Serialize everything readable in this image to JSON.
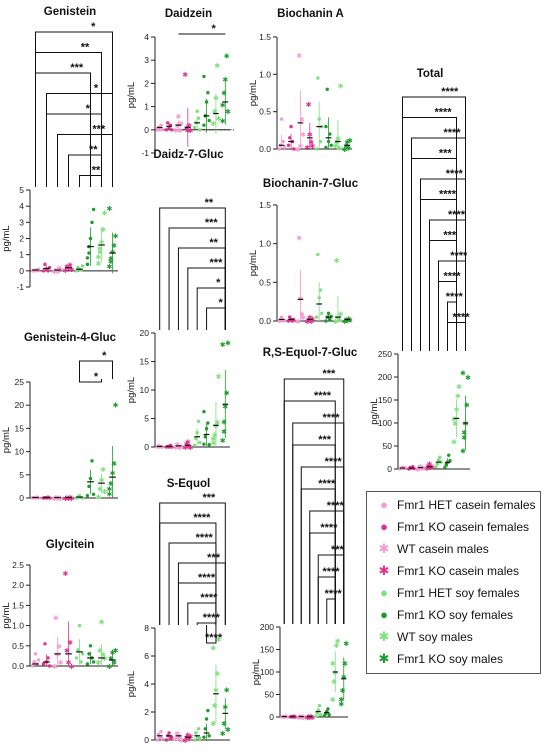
{
  "chart_data": [
    {
      "id": "genistein",
      "type": "scatter",
      "title": "Genistein",
      "ylabel": "pg/mL",
      "ylim": [
        -1,
        5
      ],
      "yticks": [
        -1,
        0,
        1,
        2,
        3,
        4,
        5
      ],
      "zero_line": false,
      "means": [
        0.05,
        0.15,
        0.05,
        0.2,
        0.1,
        1.5,
        1.6,
        1.1
      ],
      "points": [
        [
          0,
          0,
          0.05,
          0,
          0.1
        ],
        [
          0,
          0.4,
          0.1,
          0,
          0.2
        ],
        [
          0,
          0.05,
          0,
          0.2,
          0.1
        ],
        [
          0.05,
          0.3,
          0.2,
          0.4,
          0.1
        ],
        [
          0,
          0.2,
          0.1,
          0.05,
          0.3
        ],
        [
          0.4,
          1.1,
          2,
          3,
          3.8,
          0.8,
          1.5
        ],
        [
          0.5,
          1.2,
          1.8,
          2.6,
          3.6,
          0.9,
          1.4
        ],
        [
          0.3,
          0.8,
          1.2,
          1.6,
          2.2,
          3.9,
          0.6
        ]
      ],
      "brackets": [
        {
          "from": 0,
          "to": 7,
          "label": "*"
        },
        {
          "from": 0,
          "to": 6,
          "label": "**"
        },
        {
          "from": 0,
          "to": 5,
          "label": "***"
        },
        {
          "from": 1,
          "to": 7,
          "label": "*"
        },
        {
          "from": 1,
          "to": 6,
          "label": "*"
        },
        {
          "from": 2,
          "to": 7,
          "label": "***"
        },
        {
          "from": 3,
          "to": 6,
          "label": "**"
        },
        {
          "from": 4,
          "to": 6,
          "label": "**"
        }
      ]
    },
    {
      "id": "daidzein",
      "type": "scatter",
      "title": "Daidzein",
      "ylabel": "pg/mL",
      "ylim": [
        -1,
        4
      ],
      "yticks": [
        -1,
        0,
        1,
        2,
        3,
        4
      ],
      "zero_line": true,
      "means": [
        0.1,
        0.15,
        0.2,
        0.1,
        0.3,
        0.6,
        0.7,
        1.2
      ],
      "points": [
        [
          0,
          0.1,
          0,
          0.2,
          0
        ],
        [
          0,
          0.3,
          0.1,
          0.2,
          0
        ],
        [
          0,
          0.2,
          0.6,
          0,
          0.3
        ],
        [
          2.4,
          0.1,
          0,
          0.2,
          0
        ],
        [
          0.1,
          0.3,
          0.8,
          0.5,
          0
        ],
        [
          0.2,
          0.6,
          1.2,
          1.6,
          0.4,
          2.3
        ],
        [
          0.3,
          0.8,
          1.4,
          2.8,
          0.5
        ],
        [
          0.4,
          1.6,
          2.2,
          3.2,
          0.8,
          1.1
        ]
      ],
      "brackets": [
        {
          "from": 2,
          "to": 7,
          "label": "*"
        }
      ]
    },
    {
      "id": "biochanin_a",
      "type": "scatter",
      "title": "Biochanin A",
      "ylabel": "pg/mL",
      "ylim": [
        0,
        1.5
      ],
      "yticks": [
        0.0,
        0.5,
        1.0,
        1.5
      ],
      "zero_line": false,
      "means": [
        0.05,
        0.1,
        0.35,
        0.15,
        0.3,
        0.15,
        0.1,
        0.05
      ],
      "points": [
        [
          0,
          0.05,
          0.4,
          0.1,
          0.02
        ],
        [
          0.05,
          0.15,
          0.3,
          0.1,
          0
        ],
        [
          0,
          1.26,
          0.05,
          0.4,
          0.2
        ],
        [
          0.03,
          0.6,
          0.2,
          0.1,
          0.05
        ],
        [
          0,
          0.95,
          0.4,
          0.1,
          0.3
        ],
        [
          0.02,
          0.8,
          0.1,
          0.2,
          0.05,
          0.3
        ],
        [
          0.05,
          0.1,
          0.15,
          0.02,
          0.85
        ],
        [
          0,
          0.05,
          0.1,
          0.02,
          0.12
        ]
      ],
      "brackets": []
    },
    {
      "id": "daidz_7_gluc",
      "type": "scatter",
      "title": "Daidz-7-Gluc",
      "ylabel": "pg/mL",
      "ylim": [
        0,
        20
      ],
      "yticks": [
        0,
        5,
        10,
        15,
        20
      ],
      "zero_line": false,
      "means": [
        0.1,
        0.1,
        0.2,
        0.3,
        1.8,
        2.2,
        3.8,
        7.5
      ],
      "points": [
        [
          0,
          0.2,
          0,
          0.1,
          0
        ],
        [
          0,
          0.1,
          0,
          0.3,
          0
        ],
        [
          0,
          0.5,
          0.1,
          0,
          0.2
        ],
        [
          0,
          0.6,
          1,
          0.2,
          0
        ],
        [
          0.3,
          1.5,
          2.5,
          4.5,
          0.8
        ],
        [
          0.5,
          1.8,
          3.2,
          4.2,
          0.4,
          6.2
        ],
        [
          0.8,
          2.2,
          3.8,
          4.4,
          12.5,
          1.5
        ],
        [
          1.2,
          4.5,
          7.2,
          9.6,
          18.3,
          18.1,
          2.8
        ]
      ],
      "brackets": [
        {
          "from": 0,
          "to": 7,
          "label": "**"
        },
        {
          "from": 1,
          "to": 7,
          "label": "***"
        },
        {
          "from": 2,
          "to": 7,
          "label": "**"
        },
        {
          "from": 3,
          "to": 7,
          "label": "***"
        },
        {
          "from": 4,
          "to": 7,
          "label": "*"
        },
        {
          "from": 5,
          "to": 7,
          "label": "*"
        }
      ]
    },
    {
      "id": "biochanin_7_gluc",
      "type": "scatter",
      "title": "Biochanin-7-Gluc",
      "ylabel": "pg/mL",
      "ylim": [
        0,
        1.5
      ],
      "yticks": [
        0.0,
        0.5,
        1.0,
        1.5
      ],
      "zero_line": false,
      "means": [
        0.02,
        0.02,
        0.28,
        0.02,
        0.22,
        0.05,
        0.05,
        0.02
      ],
      "points": [
        [
          0,
          0.02,
          0.05,
          0,
          0.01
        ],
        [
          0,
          0.05,
          0.02,
          0,
          0.02
        ],
        [
          0,
          1.08,
          0.3,
          0.1,
          0.05
        ],
        [
          0,
          0.02,
          0.05,
          0,
          0.03
        ],
        [
          0.05,
          0.86,
          0.3,
          0.4,
          0.1
        ],
        [
          0,
          0.05,
          0.1,
          0.02,
          0.06
        ],
        [
          0,
          0.79,
          0.05,
          0.02,
          0.1
        ],
        [
          0,
          0.02,
          0.01,
          0.03,
          0.02
        ]
      ],
      "brackets": []
    },
    {
      "id": "total",
      "type": "scatter",
      "title": "Total",
      "ylabel": "pg/mL",
      "ylim": [
        0,
        250
      ],
      "yticks": [
        0,
        50,
        100,
        150,
        200,
        250
      ],
      "zero_line": false,
      "means": [
        2,
        2,
        3,
        5,
        15,
        14,
        110,
        100
      ],
      "points": [
        [
          0,
          2,
          4,
          1,
          3
        ],
        [
          0,
          3,
          2,
          5,
          1
        ],
        [
          0,
          4,
          6,
          2,
          3
        ],
        [
          2,
          8,
          12,
          4,
          5
        ],
        [
          5,
          12,
          20,
          25,
          15
        ],
        [
          4,
          10,
          15,
          30,
          18
        ],
        [
          60,
          100,
          130,
          160,
          180,
          110
        ],
        [
          40,
          70,
          100,
          140,
          200,
          210,
          80
        ]
      ],
      "brackets": [
        {
          "from": 0,
          "to": 7,
          "label": "****"
        },
        {
          "from": 0,
          "to": 6,
          "label": "****"
        },
        {
          "from": 1,
          "to": 7,
          "label": "****"
        },
        {
          "from": 1,
          "to": 6,
          "label": "***"
        },
        {
          "from": 2,
          "to": 7,
          "label": "****"
        },
        {
          "from": 2,
          "to": 6,
          "label": "****"
        },
        {
          "from": 3,
          "to": 7,
          "label": "****"
        },
        {
          "from": 3,
          "to": 6,
          "label": "***"
        },
        {
          "from": 4,
          "to": 7,
          "label": "****"
        },
        {
          "from": 4,
          "to": 6,
          "label": "****"
        },
        {
          "from": 5,
          "to": 6,
          "label": "****"
        },
        {
          "from": 5,
          "to": 7,
          "label": "****"
        }
      ]
    },
    {
      "id": "genistein_4_gluc",
      "type": "scatter",
      "title": "Genistein-4-Gluc",
      "ylabel": "pg/mL",
      "ylim": [
        0,
        25
      ],
      "yticks": [
        0,
        5,
        10,
        15,
        20,
        25
      ],
      "zero_line": false,
      "means": [
        0.1,
        0.1,
        0.1,
        0.1,
        0.2,
        3.5,
        3.2,
        4.5
      ],
      "points": [
        [
          0,
          0.1,
          0,
          0.2,
          0
        ],
        [
          0,
          0.1,
          0,
          0.2,
          0
        ],
        [
          0,
          0.2,
          0,
          0.1,
          0
        ],
        [
          0,
          0.1,
          0,
          0.2,
          0
        ],
        [
          0,
          0.2,
          0.5,
          0.1,
          0
        ],
        [
          0.5,
          2.5,
          4.2,
          8,
          0.8
        ],
        [
          0.3,
          2,
          4,
          6.2,
          1.5
        ],
        [
          1,
          3.2,
          5.5,
          7.5,
          20.2,
          2
        ]
      ],
      "brackets": [
        {
          "from": 4,
          "to": 7,
          "label": "*"
        },
        {
          "from": 4,
          "to": 6,
          "label": "*"
        }
      ]
    },
    {
      "id": "r_s_equol_7_gluc",
      "type": "scatter",
      "title": "R,S-Equol-7-Gluc",
      "ylabel": "pg/mL",
      "ylim": [
        0,
        200
      ],
      "yticks": [
        0,
        50,
        100,
        150,
        200
      ],
      "zero_line": false,
      "means": [
        1,
        1,
        1,
        1,
        12,
        10,
        100,
        85
      ],
      "points": [
        [
          0,
          1,
          0,
          2,
          0
        ],
        [
          0,
          1,
          0,
          2,
          0
        ],
        [
          0,
          2,
          0,
          1,
          0
        ],
        [
          0,
          1,
          0,
          2,
          0
        ],
        [
          2,
          10,
          15,
          25,
          5
        ],
        [
          3,
          8,
          12,
          18,
          5
        ],
        [
          40,
          80,
          100,
          160,
          170,
          120
        ],
        [
          30,
          60,
          90,
          120,
          165,
          40
        ]
      ],
      "brackets": [
        {
          "from": 0,
          "to": 7,
          "label": "***"
        },
        {
          "from": 0,
          "to": 6,
          "label": "****"
        },
        {
          "from": 1,
          "to": 7,
          "label": "****"
        },
        {
          "from": 1,
          "to": 6,
          "label": "***"
        },
        {
          "from": 2,
          "to": 7,
          "label": "****"
        },
        {
          "from": 2,
          "to": 6,
          "label": "****"
        },
        {
          "from": 3,
          "to": 7,
          "label": "****"
        },
        {
          "from": 3,
          "to": 6,
          "label": "****"
        },
        {
          "from": 4,
          "to": 7,
          "label": "***"
        },
        {
          "from": 4,
          "to": 6,
          "label": "****"
        },
        {
          "from": 5,
          "to": 6,
          "label": "****"
        }
      ]
    },
    {
      "id": "glycitein",
      "type": "scatter",
      "title": "Glycitein",
      "ylabel": "pg/mL",
      "ylim": [
        0,
        2.5
      ],
      "yticks": [
        0.0,
        0.5,
        1.0,
        1.5,
        2.0,
        2.5
      ],
      "zero_line": false,
      "means": [
        0.05,
        0.1,
        0.3,
        0.3,
        0.35,
        0.2,
        0.2,
        0.15
      ],
      "points": [
        [
          0,
          0.1,
          0.3,
          0.05,
          0.15
        ],
        [
          0.05,
          0.55,
          0.1,
          0.2,
          0
        ],
        [
          0,
          1.2,
          0.3,
          0.5,
          0.1
        ],
        [
          2.3,
          0.4,
          0.1,
          0.6,
          0
        ],
        [
          0.2,
          0.4,
          1.0,
          0.1,
          0.3
        ],
        [
          0.05,
          0.3,
          0.5,
          0.2,
          0.1
        ],
        [
          0.1,
          0.4,
          1.1,
          0.3,
          0.2
        ],
        [
          0,
          0.2,
          0.35,
          0.1,
          0.4
        ]
      ],
      "brackets": []
    },
    {
      "id": "s_equol",
      "type": "scatter",
      "title": "S-Equol",
      "ylabel": "pg/mL",
      "ylim": [
        0,
        8
      ],
      "yticks": [
        0,
        2,
        4,
        6,
        8
      ],
      "zero_line": false,
      "means": [
        0.3,
        0.3,
        0.3,
        0.2,
        0.3,
        0.5,
        3.3,
        1.9
      ],
      "points": [
        [
          0,
          0.4,
          0.2,
          0.6,
          0.1
        ],
        [
          0,
          0.3,
          0.5,
          0.1,
          0.2
        ],
        [
          0.1,
          0.5,
          0.2,
          0.3,
          0
        ],
        [
          0,
          0.2,
          0.4,
          0.1,
          0.3
        ],
        [
          0,
          0.5,
          0.2,
          0.8,
          0.1
        ],
        [
          0.2,
          0.8,
          1.5,
          2.1,
          0.3
        ],
        [
          1.2,
          2.5,
          3.6,
          4.8,
          7.2,
          6.6
        ],
        [
          0.5,
          1.2,
          2.4,
          3.6,
          0.8
        ]
      ],
      "brackets": [
        {
          "from": 0,
          "to": 7,
          "label": "***"
        },
        {
          "from": 0,
          "to": 6,
          "label": "****"
        },
        {
          "from": 1,
          "to": 6,
          "label": "****"
        },
        {
          "from": 2,
          "to": 7,
          "label": "***"
        },
        {
          "from": 2,
          "to": 6,
          "label": "****"
        },
        {
          "from": 3,
          "to": 6,
          "label": "****"
        },
        {
          "from": 4,
          "to": 6,
          "label": "****"
        },
        {
          "from": 5,
          "to": 6,
          "label": "****"
        }
      ]
    }
  ],
  "groups": [
    {
      "label": "Fmr1 HET casein females",
      "color": "#f59bd0",
      "marker": "circle"
    },
    {
      "label": "Fmr1 KO casein females",
      "color": "#e0338f",
      "marker": "circle"
    },
    {
      "label": "WT casein males",
      "color": "#f59bd0",
      "marker": "star"
    },
    {
      "label": "Fmr1 KO casein males",
      "color": "#e0338f",
      "marker": "star"
    },
    {
      "label": "Fmr1 HET soy females",
      "color": "#7ee07e",
      "marker": "circle"
    },
    {
      "label": "Fmr1 KO soy females",
      "color": "#1e9a2e",
      "marker": "circle"
    },
    {
      "label": "WT soy males",
      "color": "#7ee07e",
      "marker": "star"
    },
    {
      "label": "Fmr1 KO soy males",
      "color": "#1e9a2e",
      "marker": "star"
    }
  ]
}
